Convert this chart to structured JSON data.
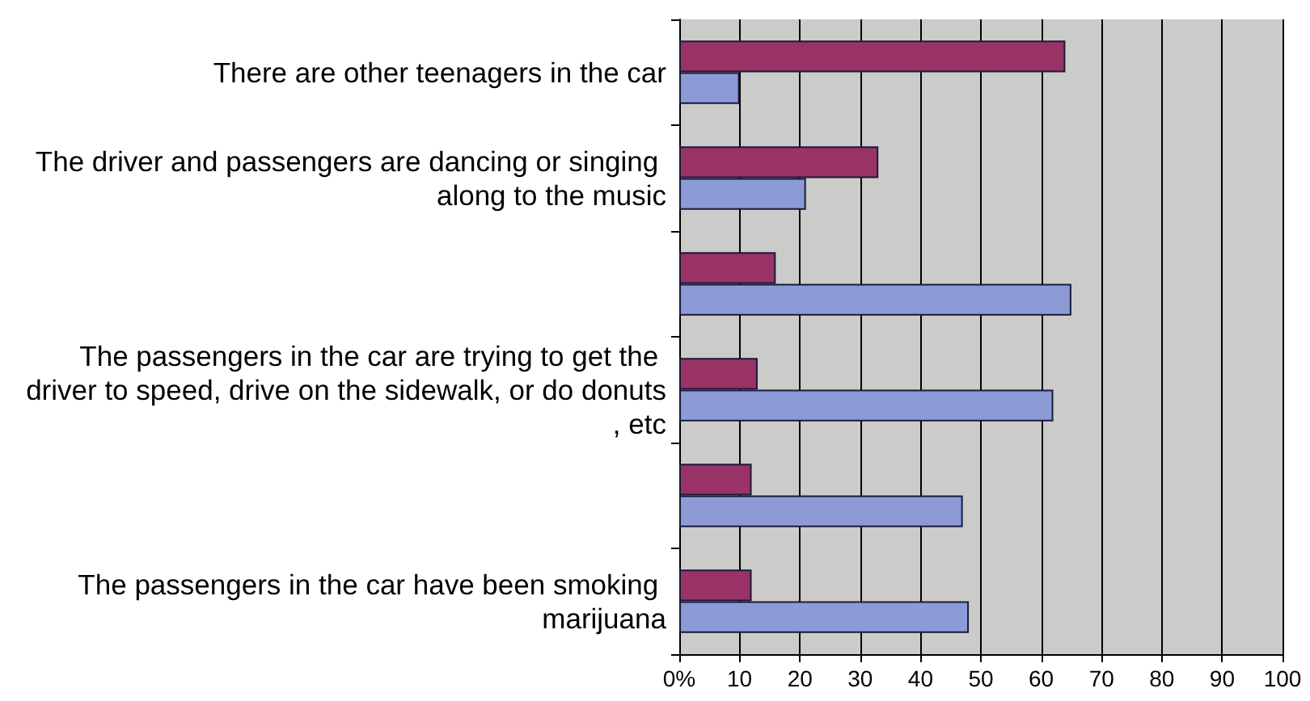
{
  "chart_data": {
    "type": "bar",
    "orientation": "horizontal",
    "categories": [
      "There are other teenagers in the car",
      "The driver and passengers are dancing or singing along to the music",
      null,
      "The passengers in the car are trying to get the driver to speed, drive on the sidewalk, or do donuts, etc",
      null,
      "The passengers in the car have been smoking marijuana"
    ],
    "series": [
      {
        "color": "#993366",
        "values": [
          64,
          33,
          16,
          13,
          12,
          12
        ]
      },
      {
        "color": "#8c9bd6",
        "values": [
          10,
          21,
          65,
          62,
          47,
          48
        ]
      }
    ],
    "xlim": [
      0,
      100
    ],
    "xticks": [
      {
        "value": 0,
        "label": "0%"
      },
      10,
      20,
      30,
      40,
      50,
      60,
      70,
      80,
      90,
      100
    ],
    "grid": "x"
  }
}
